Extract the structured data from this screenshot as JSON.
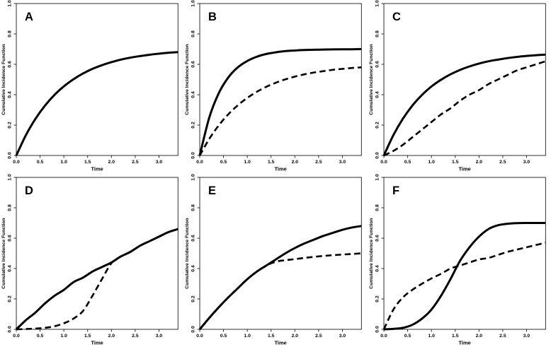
{
  "figure": {
    "title": "",
    "background_color": "#ffffff",
    "curve_color": "#000000",
    "box_color": "#1a1a1a",
    "xlabel": "Time",
    "ylabel": "Cumulative Incidence Function",
    "xlim": [
      0,
      3.4
    ],
    "ylim": [
      0,
      1
    ],
    "grid": false,
    "legend": false,
    "x_ticks": {
      "values": [
        0,
        0.5,
        1.0,
        1.5,
        2.0,
        2.5,
        3.0
      ],
      "labels": [
        "0.0",
        "0.5",
        "1.0",
        "1.5",
        "2.0",
        "2.5",
        "3.0"
      ]
    },
    "y_ticks": {
      "values": [
        0,
        0.2,
        0.4,
        0.6,
        0.8,
        1.0
      ],
      "labels": [
        "0.0",
        "0.2",
        "0.4",
        "0.6",
        "0.8",
        "1.0"
      ]
    },
    "panel_labels": [
      "A",
      "B",
      "C",
      "D",
      "E",
      "F"
    ]
  },
  "chart_data": [
    {
      "type": "line",
      "panel": "A",
      "xlabel": "Time",
      "ylabel": "Cumulative Incidence Function",
      "x": [
        0,
        0.2,
        0.4,
        0.6,
        0.8,
        1.0,
        1.2,
        1.4,
        1.6,
        1.8,
        2.0,
        2.2,
        2.4,
        2.6,
        2.8,
        3.0,
        3.2,
        3.4
      ],
      "series": [
        {
          "name": "solid-curve",
          "style": "solid",
          "values": [
            0,
            0.133,
            0.24,
            0.327,
            0.398,
            0.455,
            0.501,
            0.539,
            0.57,
            0.594,
            0.614,
            0.631,
            0.644,
            0.654,
            0.663,
            0.67,
            0.676,
            0.68
          ]
        }
      ]
    },
    {
      "type": "line",
      "panel": "B",
      "xlabel": "Time",
      "ylabel": "Cumulative Incidence Function",
      "x": [
        0,
        0.2,
        0.4,
        0.6,
        0.8,
        1.0,
        1.2,
        1.4,
        1.6,
        1.8,
        2.0,
        2.2,
        2.4,
        2.6,
        2.8,
        3.0,
        3.2,
        3.4
      ],
      "series": [
        {
          "name": "dashed-curve",
          "style": "dashed",
          "values": [
            0,
            0.109,
            0.198,
            0.271,
            0.33,
            0.379,
            0.419,
            0.452,
            0.479,
            0.501,
            0.519,
            0.534,
            0.546,
            0.555,
            0.564,
            0.57,
            0.576,
            0.58
          ]
        },
        {
          "name": "solid-curve",
          "style": "solid",
          "values": [
            0,
            0.249,
            0.41,
            0.513,
            0.58,
            0.622,
            0.65,
            0.668,
            0.679,
            0.687,
            0.691,
            0.694,
            0.696,
            0.697,
            0.698,
            0.699,
            0.699,
            0.7
          ]
        }
      ]
    },
    {
      "type": "line",
      "panel": "C",
      "xlabel": "Time",
      "ylabel": "Cumulative Incidence Function",
      "x": [
        0,
        0.2,
        0.4,
        0.6,
        0.8,
        1.0,
        1.2,
        1.4,
        1.6,
        1.8,
        2.0,
        2.2,
        2.4,
        2.6,
        2.8,
        3.0,
        3.2,
        3.4
      ],
      "series": [
        {
          "name": "dashed-curve",
          "style": "dashed",
          "values": [
            0,
            0.03,
            0.07,
            0.12,
            0.17,
            0.22,
            0.27,
            0.31,
            0.36,
            0.4,
            0.43,
            0.47,
            0.5,
            0.53,
            0.56,
            0.58,
            0.6,
            0.62
          ]
        },
        {
          "name": "solid-curve",
          "style": "solid",
          "values": [
            0,
            0.134,
            0.242,
            0.329,
            0.398,
            0.454,
            0.498,
            0.534,
            0.563,
            0.586,
            0.605,
            0.62,
            0.631,
            0.641,
            0.649,
            0.655,
            0.66,
            0.664
          ]
        }
      ]
    },
    {
      "type": "line",
      "panel": "D",
      "xlabel": "Time",
      "ylabel": "Cumulative Incidence Function",
      "x": [
        0,
        0.2,
        0.4,
        0.6,
        0.8,
        1.0,
        1.2,
        1.4,
        1.6,
        1.8,
        2.0,
        2.2,
        2.4,
        2.6,
        2.8,
        3.0,
        3.2,
        3.4
      ],
      "series": [
        {
          "name": "dashed-curve",
          "style": "dashed",
          "values": [
            0,
            0.002,
            0.005,
            0.01,
            0.02,
            0.04,
            0.07,
            0.12,
            0.22,
            0.33,
            0.435,
            0.48,
            0.51,
            0.55,
            0.58,
            0.61,
            0.64,
            0.66
          ]
        },
        {
          "name": "solid-curve",
          "style": "solid",
          "values": [
            0,
            0.06,
            0.11,
            0.17,
            0.22,
            0.26,
            0.31,
            0.34,
            0.38,
            0.41,
            0.44,
            0.48,
            0.51,
            0.55,
            0.58,
            0.61,
            0.64,
            0.66
          ]
        }
      ]
    },
    {
      "type": "line",
      "panel": "E",
      "xlabel": "Time",
      "ylabel": "Cumulative Incidence Function",
      "x": [
        0,
        0.2,
        0.4,
        0.6,
        0.8,
        1.0,
        1.2,
        1.4,
        1.6,
        1.8,
        2.0,
        2.2,
        2.4,
        2.6,
        2.8,
        3.0,
        3.2,
        3.4
      ],
      "series": [
        {
          "name": "dashed-curve",
          "style": "dashed",
          "values": [
            0,
            0.075,
            0.145,
            0.21,
            0.27,
            0.33,
            0.38,
            0.42,
            0.445,
            0.455,
            0.462,
            0.47,
            0.477,
            0.483,
            0.488,
            0.492,
            0.496,
            0.5
          ]
        },
        {
          "name": "solid-curve",
          "style": "solid",
          "values": [
            0,
            0.075,
            0.145,
            0.21,
            0.27,
            0.33,
            0.38,
            0.42,
            0.46,
            0.5,
            0.535,
            0.565,
            0.59,
            0.615,
            0.635,
            0.655,
            0.67,
            0.68
          ]
        }
      ]
    },
    {
      "type": "line",
      "panel": "F",
      "xlabel": "Time",
      "ylabel": "Cumulative Incidence Function",
      "x": [
        0,
        0.2,
        0.4,
        0.6,
        0.8,
        1.0,
        1.2,
        1.4,
        1.6,
        1.8,
        2.0,
        2.2,
        2.4,
        2.6,
        2.8,
        3.0,
        3.2,
        3.4
      ],
      "series": [
        {
          "name": "dashed-curve",
          "style": "dashed",
          "values": [
            0,
            0.13,
            0.21,
            0.26,
            0.3,
            0.335,
            0.365,
            0.4,
            0.42,
            0.44,
            0.46,
            0.47,
            0.49,
            0.51,
            0.525,
            0.54,
            0.555,
            0.57
          ]
        },
        {
          "name": "solid-curve",
          "style": "solid",
          "values": [
            0,
            0.003,
            0.01,
            0.03,
            0.07,
            0.13,
            0.22,
            0.33,
            0.45,
            0.54,
            0.61,
            0.66,
            0.685,
            0.695,
            0.699,
            0.7,
            0.7,
            0.7
          ]
        }
      ]
    }
  ]
}
